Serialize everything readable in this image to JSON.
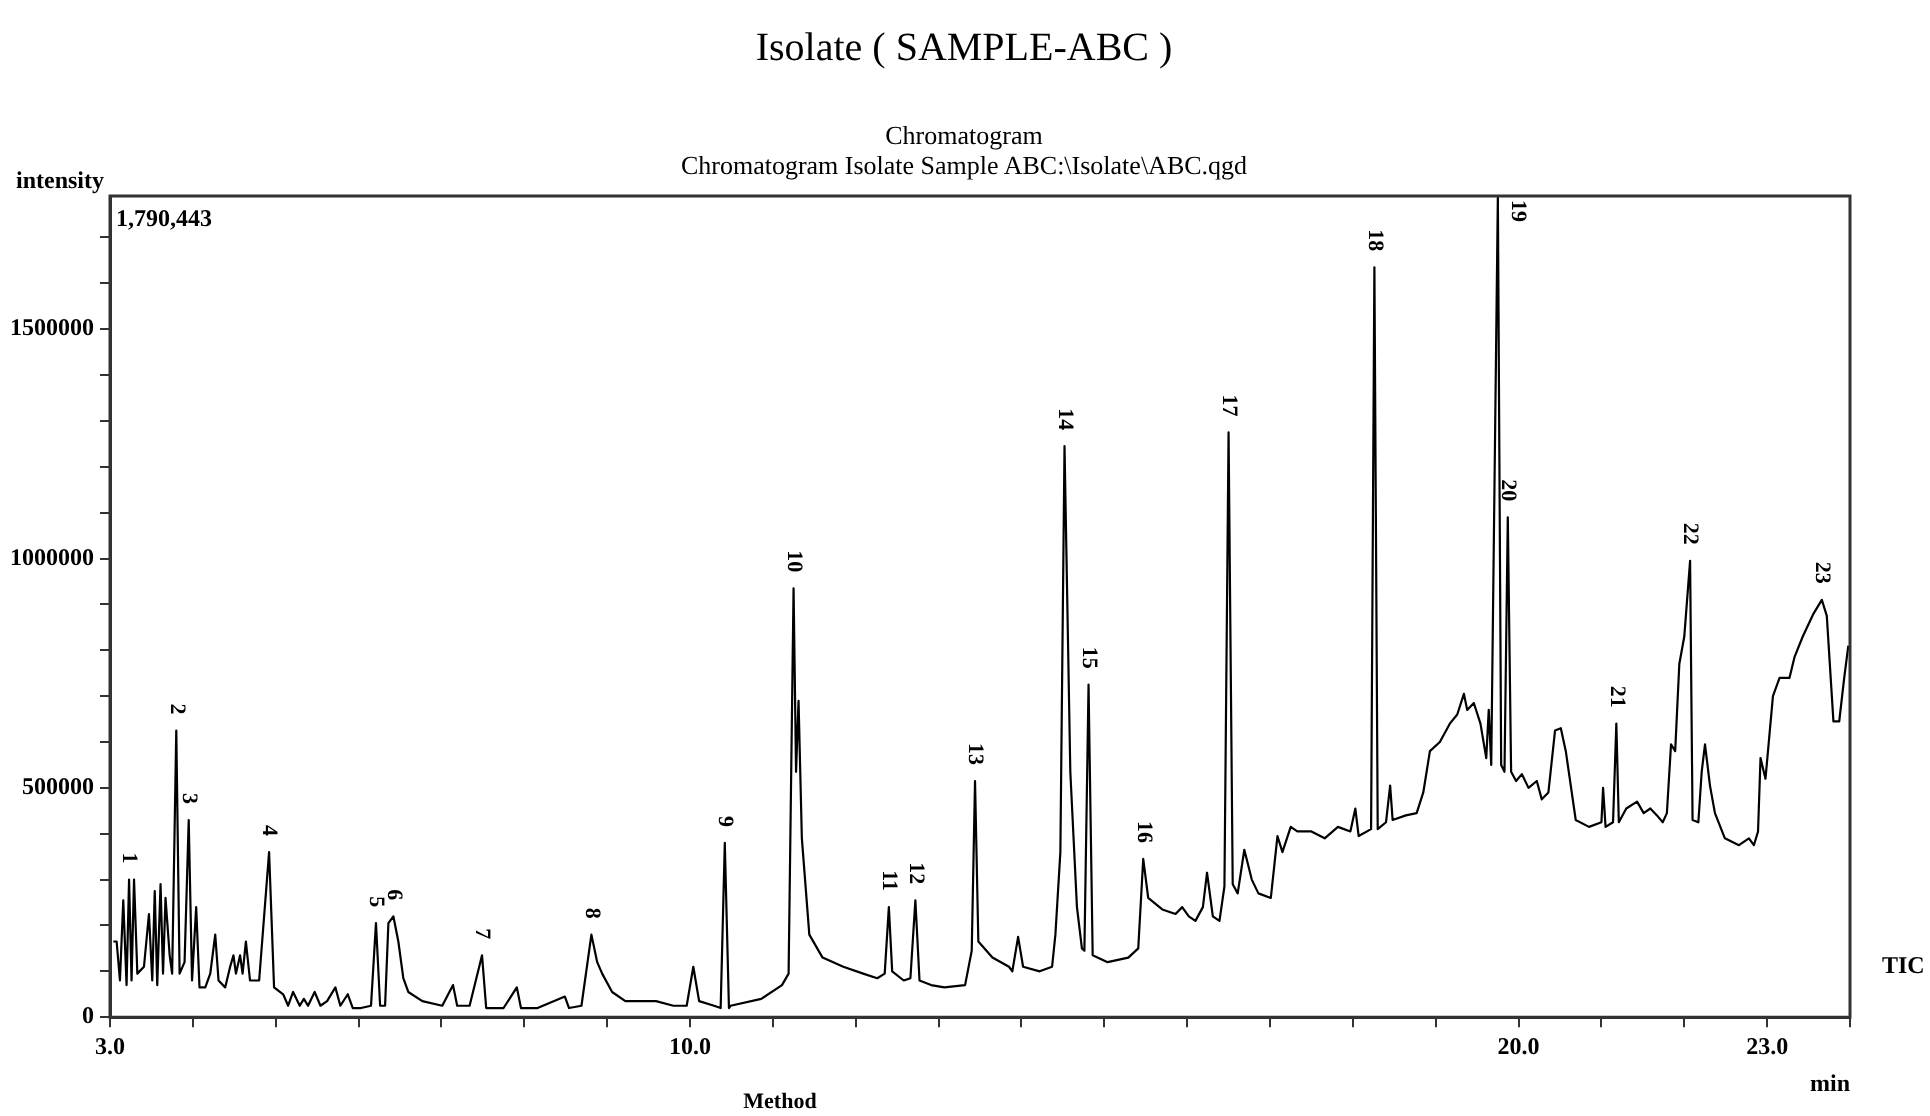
{
  "chart_data": {
    "type": "line",
    "title": "Isolate ( SAMPLE-ABC )",
    "subtitle": "Chromatogram\nChromatogram Isolate Sample ABC:\\Isolate\\ABC.qgd",
    "xlabel": "min",
    "ylabel": "intensity",
    "x": [
      3.04,
      3.08,
      3.12,
      3.16,
      3.2,
      3.23,
      3.26,
      3.29,
      3.33,
      3.41,
      3.47,
      3.51,
      3.54,
      3.57,
      3.61,
      3.64,
      3.67,
      3.72,
      3.75,
      3.8,
      3.84,
      3.9,
      3.95,
      3.99,
      4.04,
      4.08,
      4.15,
      4.21,
      4.27,
      4.31,
      4.39,
      4.45,
      4.49,
      4.52,
      4.57,
      4.6,
      4.64,
      4.69,
      4.8,
      4.92,
      4.98,
      5.09,
      5.15,
      5.21,
      5.29,
      5.34,
      5.39,
      5.47,
      5.54,
      5.62,
      5.72,
      5.78,
      5.87,
      5.93,
      6.03,
      6.15,
      6.21,
      6.26,
      6.32,
      6.36,
      6.42,
      6.48,
      6.54,
      6.6,
      6.77,
      7.01,
      7.14,
      7.19,
      7.34,
      7.49,
      7.54,
      7.75,
      7.91,
      7.96,
      8.16,
      8.49,
      8.54,
      8.69,
      8.81,
      8.88,
      8.94,
      9.06,
      9.22,
      9.43,
      9.59,
      9.8,
      9.96,
      10.04,
      10.11,
      10.29,
      10.37,
      10.42,
      10.47,
      10.49,
      10.86,
      11.11,
      11.19,
      11.25,
      11.28,
      11.31,
      11.35,
      11.44,
      11.6,
      11.85,
      12.09,
      12.26,
      12.35,
      12.4,
      12.44,
      12.58,
      12.66,
      12.72,
      12.77,
      12.91,
      13.07,
      13.32,
      13.4,
      13.44,
      13.48,
      13.65,
      13.85,
      13.89,
      13.96,
      14.02,
      14.22,
      14.37,
      14.41,
      14.47,
      14.52,
      14.59,
      14.67,
      14.73,
      14.76,
      14.81,
      14.86,
      15.04,
      15.29,
      15.41,
      15.47,
      15.53,
      15.7,
      15.86,
      15.94,
      16.02,
      16.1,
      16.19,
      16.24,
      16.31,
      16.39,
      16.45,
      16.5,
      16.55,
      16.61,
      16.69,
      16.78,
      16.86,
      17.01,
      17.09,
      17.15,
      17.25,
      17.33,
      17.5,
      17.66,
      17.82,
      17.97,
      18.03,
      18.07,
      18.22,
      18.26,
      18.3,
      18.4,
      18.45,
      18.48,
      18.64,
      18.77,
      18.85,
      18.93,
      19.05,
      19.17,
      19.26,
      19.34,
      19.38,
      19.46,
      19.54,
      19.61,
      19.64,
      19.67,
      19.75,
      19.79,
      19.83,
      19.87,
      19.91,
      19.97,
      20.04,
      20.12,
      20.22,
      20.28,
      20.36,
      20.44,
      20.51,
      20.57,
      20.69,
      20.85,
      21.0,
      21.02,
      21.05,
      21.14,
      21.18,
      21.21,
      21.3,
      21.43,
      21.51,
      21.59,
      21.67,
      21.74,
      21.79,
      21.84,
      21.89,
      21.94,
      22.0,
      22.07,
      22.1,
      22.17,
      22.21,
      22.25,
      22.31,
      22.37,
      22.49,
      22.66,
      22.78,
      22.84,
      22.89,
      22.92,
      22.98,
      23.07,
      23.15,
      23.27,
      23.33,
      23.43,
      23.56,
      23.66,
      23.72,
      23.8,
      23.87,
      23.93,
      23.98
    ],
    "series": [
      {
        "color": "#000000",
        "values": [
          165000,
          165000,
          80000,
          255000,
          70000,
          300000,
          80000,
          300000,
          95000,
          110000,
          225000,
          80000,
          275000,
          70000,
          290000,
          95000,
          260000,
          135000,
          95000,
          625000,
          95000,
          120000,
          430000,
          80000,
          240000,
          65000,
          65000,
          95000,
          180000,
          80000,
          65000,
          110000,
          135000,
          95000,
          135000,
          95000,
          165000,
          80000,
          80000,
          360000,
          65000,
          50000,
          25000,
          55000,
          25000,
          40000,
          25000,
          55000,
          25000,
          35000,
          65000,
          25000,
          50000,
          20000,
          20000,
          25000,
          205000,
          25000,
          25000,
          205000,
          220000,
          165000,
          85000,
          55000,
          35000,
          25000,
          70000,
          25000,
          25000,
          135000,
          20000,
          20000,
          65000,
          20000,
          20000,
          45000,
          20000,
          25000,
          180000,
          120000,
          95000,
          55000,
          35000,
          35000,
          35000,
          25000,
          25000,
          110000,
          35000,
          25000,
          20000,
          380000,
          20000,
          25000,
          40000,
          70000,
          95000,
          935000,
          535000,
          690000,
          390000,
          180000,
          130000,
          110000,
          95000,
          85000,
          95000,
          240000,
          100000,
          80000,
          85000,
          255000,
          80000,
          70000,
          65000,
          70000,
          145000,
          515000,
          165000,
          130000,
          110000,
          100000,
          175000,
          110000,
          100000,
          110000,
          180000,
          360000,
          1245000,
          535000,
          240000,
          150000,
          145000,
          725000,
          135000,
          120000,
          130000,
          150000,
          345000,
          260000,
          235000,
          225000,
          240000,
          220000,
          210000,
          240000,
          315000,
          220000,
          210000,
          285000,
          1275000,
          290000,
          270000,
          365000,
          300000,
          270000,
          260000,
          395000,
          360000,
          415000,
          405000,
          405000,
          390000,
          415000,
          405000,
          455000,
          395000,
          410000,
          1635000,
          410000,
          425000,
          505000,
          430000,
          440000,
          445000,
          490000,
          580000,
          600000,
          640000,
          660000,
          705000,
          670000,
          685000,
          640000,
          565000,
          670000,
          550000,
          1790000,
          550000,
          535000,
          1090000,
          535000,
          515000,
          530000,
          500000,
          515000,
          475000,
          490000,
          625000,
          630000,
          580000,
          430000,
          415000,
          425000,
          500000,
          415000,
          425000,
          640000,
          425000,
          455000,
          470000,
          445000,
          455000,
          440000,
          425000,
          445000,
          595000,
          580000,
          770000,
          830000,
          995000,
          430000,
          425000,
          535000,
          595000,
          505000,
          445000,
          390000,
          375000,
          390000,
          375000,
          405000,
          565000,
          520000,
          700000,
          740000,
          740000,
          785000,
          830000,
          880000,
          910000,
          875000,
          645000,
          645000,
          740000,
          810000
        ]
      }
    ],
    "xlim": [
      3,
      24
    ],
    "xticks": [
      {
        "value": 3,
        "label": "3.0"
      },
      {
        "value": 4,
        "label": null
      },
      {
        "value": 5,
        "label": null
      },
      {
        "value": 6,
        "label": null
      },
      {
        "value": 7,
        "label": null
      },
      {
        "value": 8,
        "label": null
      },
      {
        "value": 9,
        "label": null
      },
      {
        "value": 10,
        "label": "10.0"
      },
      {
        "value": 11,
        "label": null
      },
      {
        "value": 12,
        "label": null
      },
      {
        "value": 13,
        "label": null
      },
      {
        "value": 14,
        "label": null
      },
      {
        "value": 15,
        "label": null
      },
      {
        "value": 16,
        "label": null
      },
      {
        "value": 17,
        "label": null
      },
      {
        "value": 18,
        "label": null
      },
      {
        "value": 19,
        "label": null
      },
      {
        "value": 20,
        "label": "20.0"
      },
      {
        "value": 21,
        "label": null
      },
      {
        "value": 22,
        "label": null
      },
      {
        "value": 23,
        "label": "23.0"
      },
      {
        "value": 24,
        "label": null
      }
    ],
    "ylim": [
      0,
      1790443
    ],
    "yticks": [
      0,
      {
        "value": 100000,
        "label": null
      },
      {
        "value": 200000,
        "label": null
      },
      {
        "value": 300000,
        "label": null
      },
      {
        "value": 400000,
        "label": null
      },
      500000,
      {
        "value": 600000,
        "label": null
      },
      {
        "value": 700000,
        "label": null
      },
      {
        "value": 800000,
        "label": null
      },
      {
        "value": 900000,
        "label": null
      },
      1000000,
      {
        "value": 1100000,
        "label": null
      },
      {
        "value": 1200000,
        "label": null
      },
      {
        "value": 1300000,
        "label": null
      },
      {
        "value": 1400000,
        "label": null
      },
      1500000,
      {
        "value": 1600000,
        "label": null
      },
      {
        "value": 1700000,
        "label": null
      }
    ],
    "marker": "none",
    "line_style": "solid",
    "legend": false,
    "annotations": [
      "1,790,443",
      "TIC",
      "Method",
      {
        "text": "1",
        "x": 3.23,
        "y": 300000
      },
      {
        "text": "2",
        "x": 3.8,
        "y": 625000
      },
      {
        "text": "3",
        "x": 3.95,
        "y": 430000
      },
      {
        "text": "4",
        "x": 4.92,
        "y": 360000
      },
      {
        "text": "5",
        "x": 6.21,
        "y": 205000
      },
      {
        "text": "6",
        "x": 6.42,
        "y": 220000
      },
      {
        "text": "7",
        "x": 7.49,
        "y": 135000
      },
      {
        "text": "8",
        "x": 8.81,
        "y": 180000
      },
      {
        "text": "9",
        "x": 10.42,
        "y": 380000
      },
      {
        "text": "10",
        "x": 11.25,
        "y": 935000
      },
      {
        "text": "11",
        "x": 12.4,
        "y": 240000
      },
      {
        "text": "12",
        "x": 12.72,
        "y": 255000
      },
      {
        "text": "13",
        "x": 13.44,
        "y": 515000
      },
      {
        "text": "14",
        "x": 14.52,
        "y": 1245000
      },
      {
        "text": "15",
        "x": 14.81,
        "y": 725000
      },
      {
        "text": "16",
        "x": 15.47,
        "y": 345000
      },
      {
        "text": "17",
        "x": 16.5,
        "y": 1275000
      },
      {
        "text": "18",
        "x": 18.26,
        "y": 1635000
      },
      {
        "text": "19",
        "x": 19.75,
        "y": 1790000
      },
      {
        "text": "20",
        "x": 19.87,
        "y": 1090000
      },
      {
        "text": "21",
        "x": 21.18,
        "y": 640000
      },
      {
        "text": "22",
        "x": 22.07,
        "y": 995000
      },
      {
        "text": "23",
        "x": 23.66,
        "y": 910000
      }
    ]
  }
}
